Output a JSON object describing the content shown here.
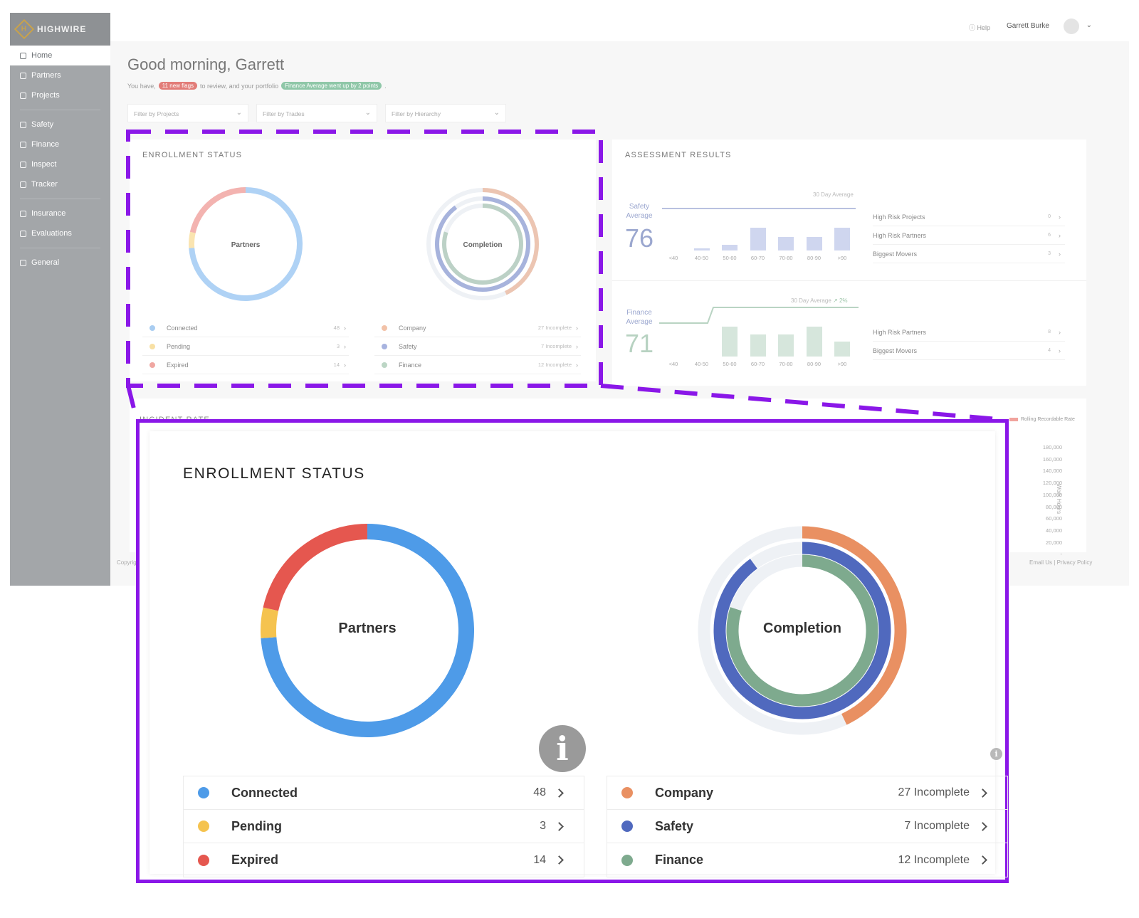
{
  "app": {
    "brand": "HIGHWIRE",
    "brand_mark": "H",
    "nav": [
      {
        "label": "Home",
        "icon": "home-icon"
      },
      {
        "label": "Partners",
        "icon": "partners-icon"
      },
      {
        "label": "Projects",
        "icon": "projects-icon"
      },
      {
        "label": "Safety",
        "icon": "shield-icon"
      },
      {
        "label": "Finance",
        "icon": "chart-icon"
      },
      {
        "label": "Inspect",
        "icon": "eye-icon"
      },
      {
        "label": "Tracker",
        "icon": "check-icon"
      },
      {
        "label": "Insurance",
        "icon": "circle-icon"
      },
      {
        "label": "Evaluations",
        "icon": "clipboard-icon"
      },
      {
        "label": "General",
        "icon": "gear-icon"
      }
    ],
    "header": {
      "help": "Help",
      "user_name": "Garrett Burke"
    },
    "greeting": "Good morning, Garrett",
    "subline": {
      "prefix": "You have,",
      "flags_pill": "11 new flags",
      "middle": "to review, and your portfolio",
      "finance_pill": "Finance Average went up by 2 points",
      "suffix": "."
    },
    "filters": [
      "Filter by Projects",
      "Filter by Trades",
      "Filter by Hierarchy"
    ],
    "assessment": {
      "title": "ASSESSMENT RESULTS",
      "safety": {
        "label_1": "Safety",
        "label_2": "Average",
        "value": "76",
        "avg_text": "30 Day Average",
        "bins": [
          "<40",
          "40-50",
          "50-60",
          "60-70",
          "70-80",
          "80-90",
          ">90"
        ],
        "bar_levels": [
          0,
          0.1,
          0.25,
          1.0,
          0.6,
          0.6,
          1.0
        ],
        "links": [
          {
            "label": "High Risk Projects",
            "value": "0"
          },
          {
            "label": "High Risk Partners",
            "value": "6"
          },
          {
            "label": "Biggest Movers",
            "value": "3"
          }
        ]
      },
      "finance": {
        "label_1": "Finance",
        "label_2": "Average",
        "value": "71",
        "avg_text": "30 Day Average",
        "avg_change": "2%",
        "bins": [
          "<40",
          "40-50",
          "50-60",
          "60-70",
          "70-80",
          "80-90",
          ">90"
        ],
        "bar_levels": [
          0,
          0,
          1.0,
          0.75,
          0.75,
          1.0,
          0.5
        ],
        "links": [
          {
            "label": "High Risk Partners",
            "value": "8"
          },
          {
            "label": "Biggest Movers",
            "value": "4"
          }
        ]
      }
    },
    "incident": {
      "title": "INCIDENT RATE",
      "legend": "Rolling Recordable Rate",
      "y_axis_label": "Work Hours",
      "y_ticks": [
        "180,000",
        "160,000",
        "140,000",
        "120,000",
        "100,000",
        "80,000",
        "60,000",
        "40,000",
        "20,000",
        "-"
      ]
    },
    "footer": {
      "copyright": "Copyright",
      "email": "Email Us",
      "sep": "|",
      "privacy": "Privacy Policy"
    }
  },
  "enrollment": {
    "title": "ENROLLMENT STATUS",
    "partners_label": "Partners",
    "completion_label": "Completion",
    "partners": [
      {
        "label": "Connected",
        "value": "48",
        "count": 48,
        "color": "#4e9be8"
      },
      {
        "label": "Pending",
        "value": "3",
        "count": 3,
        "color": "#f5c34f"
      },
      {
        "label": "Expired",
        "value": "14",
        "count": 14,
        "color": "#e5574f"
      }
    ],
    "completion": [
      {
        "label": "Company",
        "value": "27 Incomplete",
        "fraction": 0.43,
        "color": "#e99062"
      },
      {
        "label": "Safety",
        "value": "7 Incomplete",
        "fraction": 0.9,
        "color": "#5069be"
      },
      {
        "label": "Finance",
        "value": "12 Incomplete",
        "fraction": 0.8,
        "color": "#7eaa8e"
      }
    ],
    "track_color": "#eef1f5",
    "info_icon": "i"
  },
  "colors": {
    "callout": "#8a17e8",
    "sidebar": "#a3a6a9"
  }
}
